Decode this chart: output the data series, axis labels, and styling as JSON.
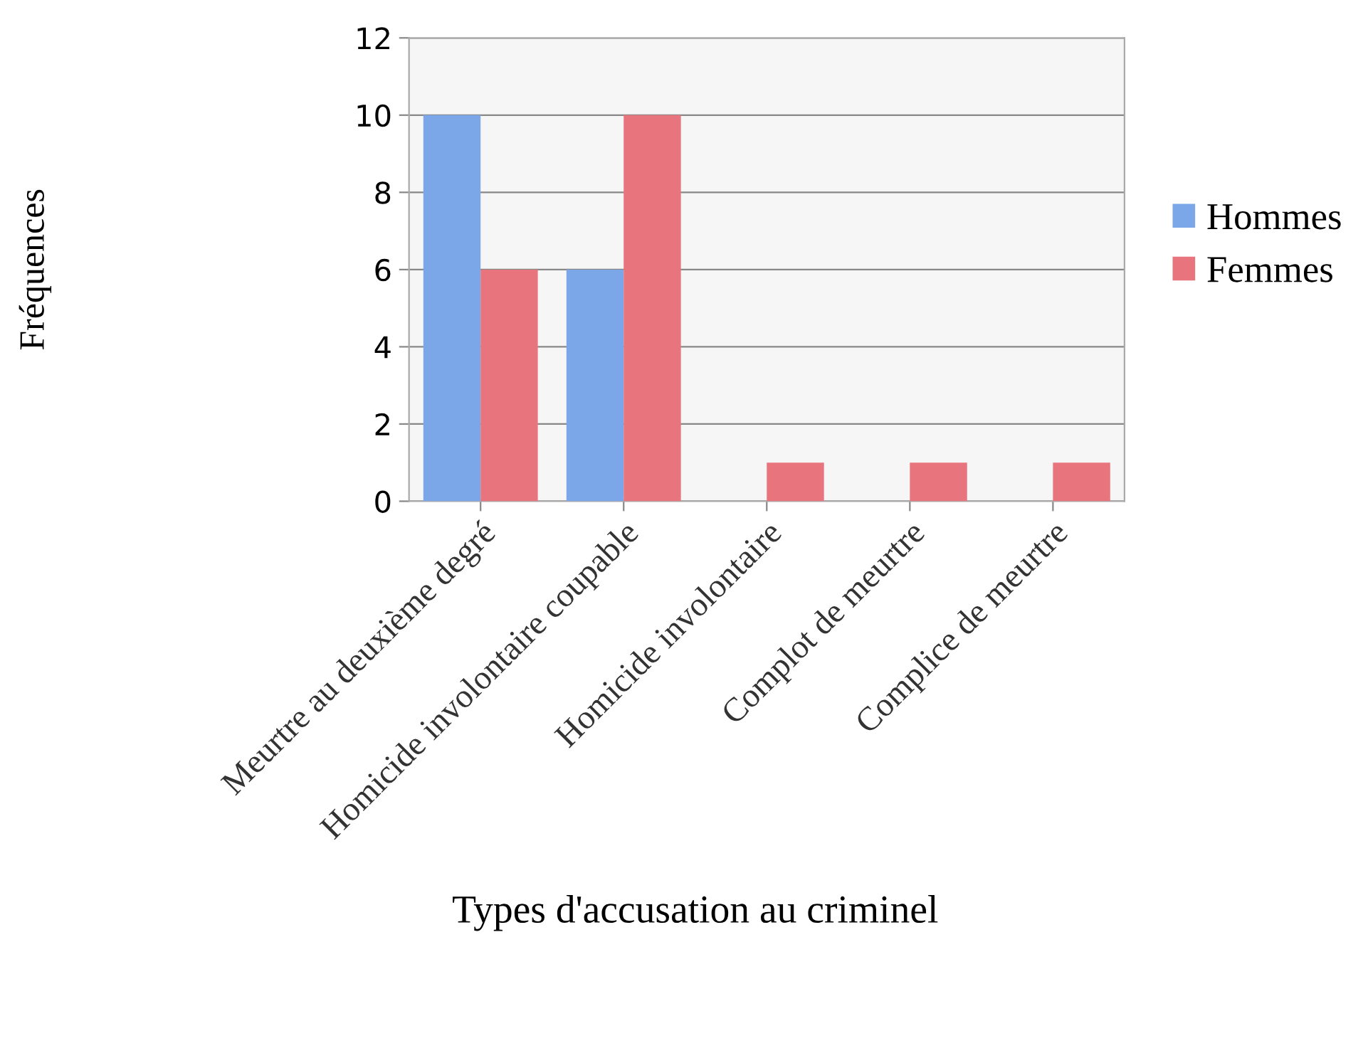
{
  "chart_data": {
    "type": "bar",
    "xlabel": "Types d'accusation au criminel",
    "ylabel": "Fréquences",
    "categories": [
      "Meurtre au deuxième degré",
      "Homicide involontaire coupable",
      "Homicide involontaire",
      "Complot de meurtre",
      "Complice de meurtre"
    ],
    "series": [
      {
        "name": "Hommes",
        "color": "#7ba7e8",
        "values": [
          10,
          6,
          0,
          0,
          0
        ]
      },
      {
        "name": "Femmes",
        "color": "#e8757d",
        "values": [
          6,
          10,
          1,
          1,
          1
        ]
      }
    ],
    "ylim": [
      0,
      12
    ],
    "yticks": [
      0,
      2,
      4,
      6,
      8,
      10,
      12
    ],
    "grid": "y",
    "legend": "right"
  }
}
